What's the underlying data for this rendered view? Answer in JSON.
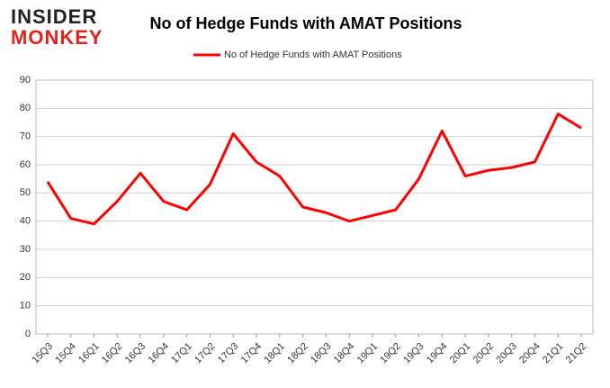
{
  "logo": {
    "line1": "INSIDER",
    "line2": "MONKEY"
  },
  "chart_data": {
    "type": "line",
    "title": "No of Hedge Funds with AMAT Positions",
    "categories": [
      "15Q3",
      "15Q4",
      "16Q1",
      "16Q2",
      "16Q3",
      "16Q4",
      "17Q1",
      "17Q2",
      "17Q3",
      "17Q4",
      "18Q1",
      "18Q2",
      "18Q3",
      "18Q4",
      "19Q1",
      "19Q2",
      "19Q3",
      "19Q4",
      "20Q1",
      "20Q2",
      "20Q3",
      "20Q4",
      "21Q1",
      "21Q2"
    ],
    "series": [
      {
        "name": "No of Hedge Funds with AMAT Positions",
        "color": "#ff0000",
        "values": [
          54,
          41,
          39,
          47,
          57,
          47,
          44,
          53,
          71,
          61,
          56,
          45,
          43,
          40,
          42,
          44,
          55,
          72,
          56,
          58,
          59,
          61,
          78,
          73
        ]
      }
    ],
    "ylim": [
      0,
      90
    ],
    "yticks": [
      0,
      10,
      20,
      30,
      40,
      50,
      60,
      70,
      80,
      90
    ],
    "grid": true,
    "legend": "top"
  }
}
